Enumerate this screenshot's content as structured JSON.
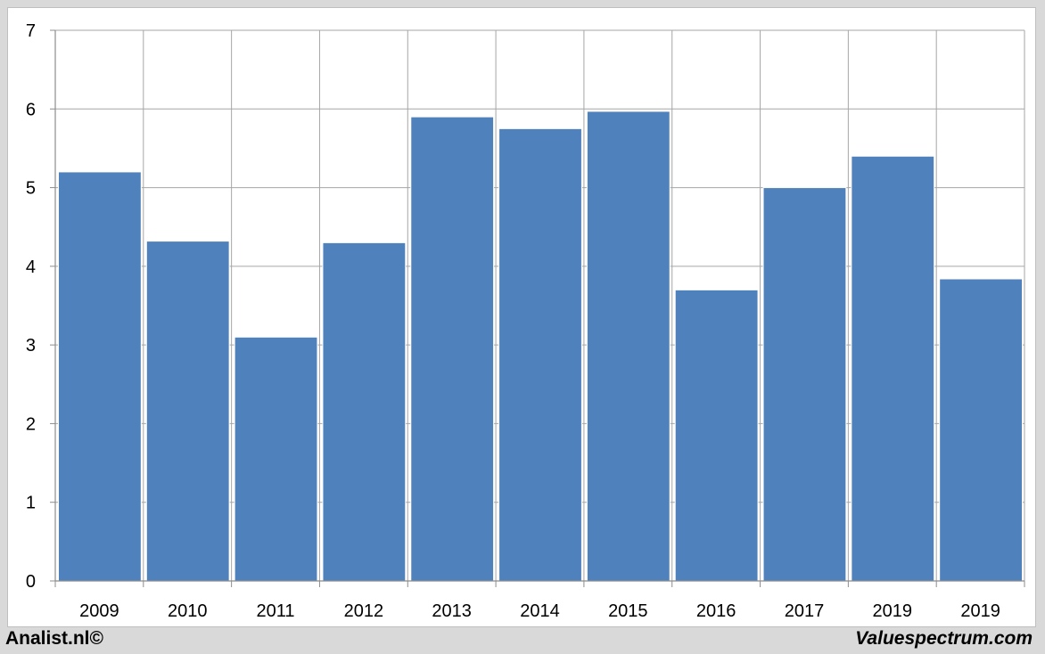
{
  "chart_data": {
    "type": "bar",
    "categories": [
      "2009",
      "2010",
      "2011",
      "2012",
      "2013",
      "2014",
      "2015",
      "2016",
      "2017",
      "2019",
      "2019"
    ],
    "values": [
      5.2,
      4.32,
      3.1,
      4.3,
      5.9,
      5.75,
      5.97,
      3.7,
      5.0,
      5.4,
      3.84
    ],
    "title": "",
    "xlabel": "",
    "ylabel": "",
    "ylim": [
      0,
      7
    ],
    "yticks": [
      "0",
      "1",
      "2",
      "3",
      "4",
      "5",
      "6",
      "7"
    ],
    "grid": true,
    "legend": "none",
    "bar_color": "#4f81bd"
  },
  "footer": {
    "left_text": "Analist.nl©",
    "right_text": "Valuespectrum.com"
  }
}
